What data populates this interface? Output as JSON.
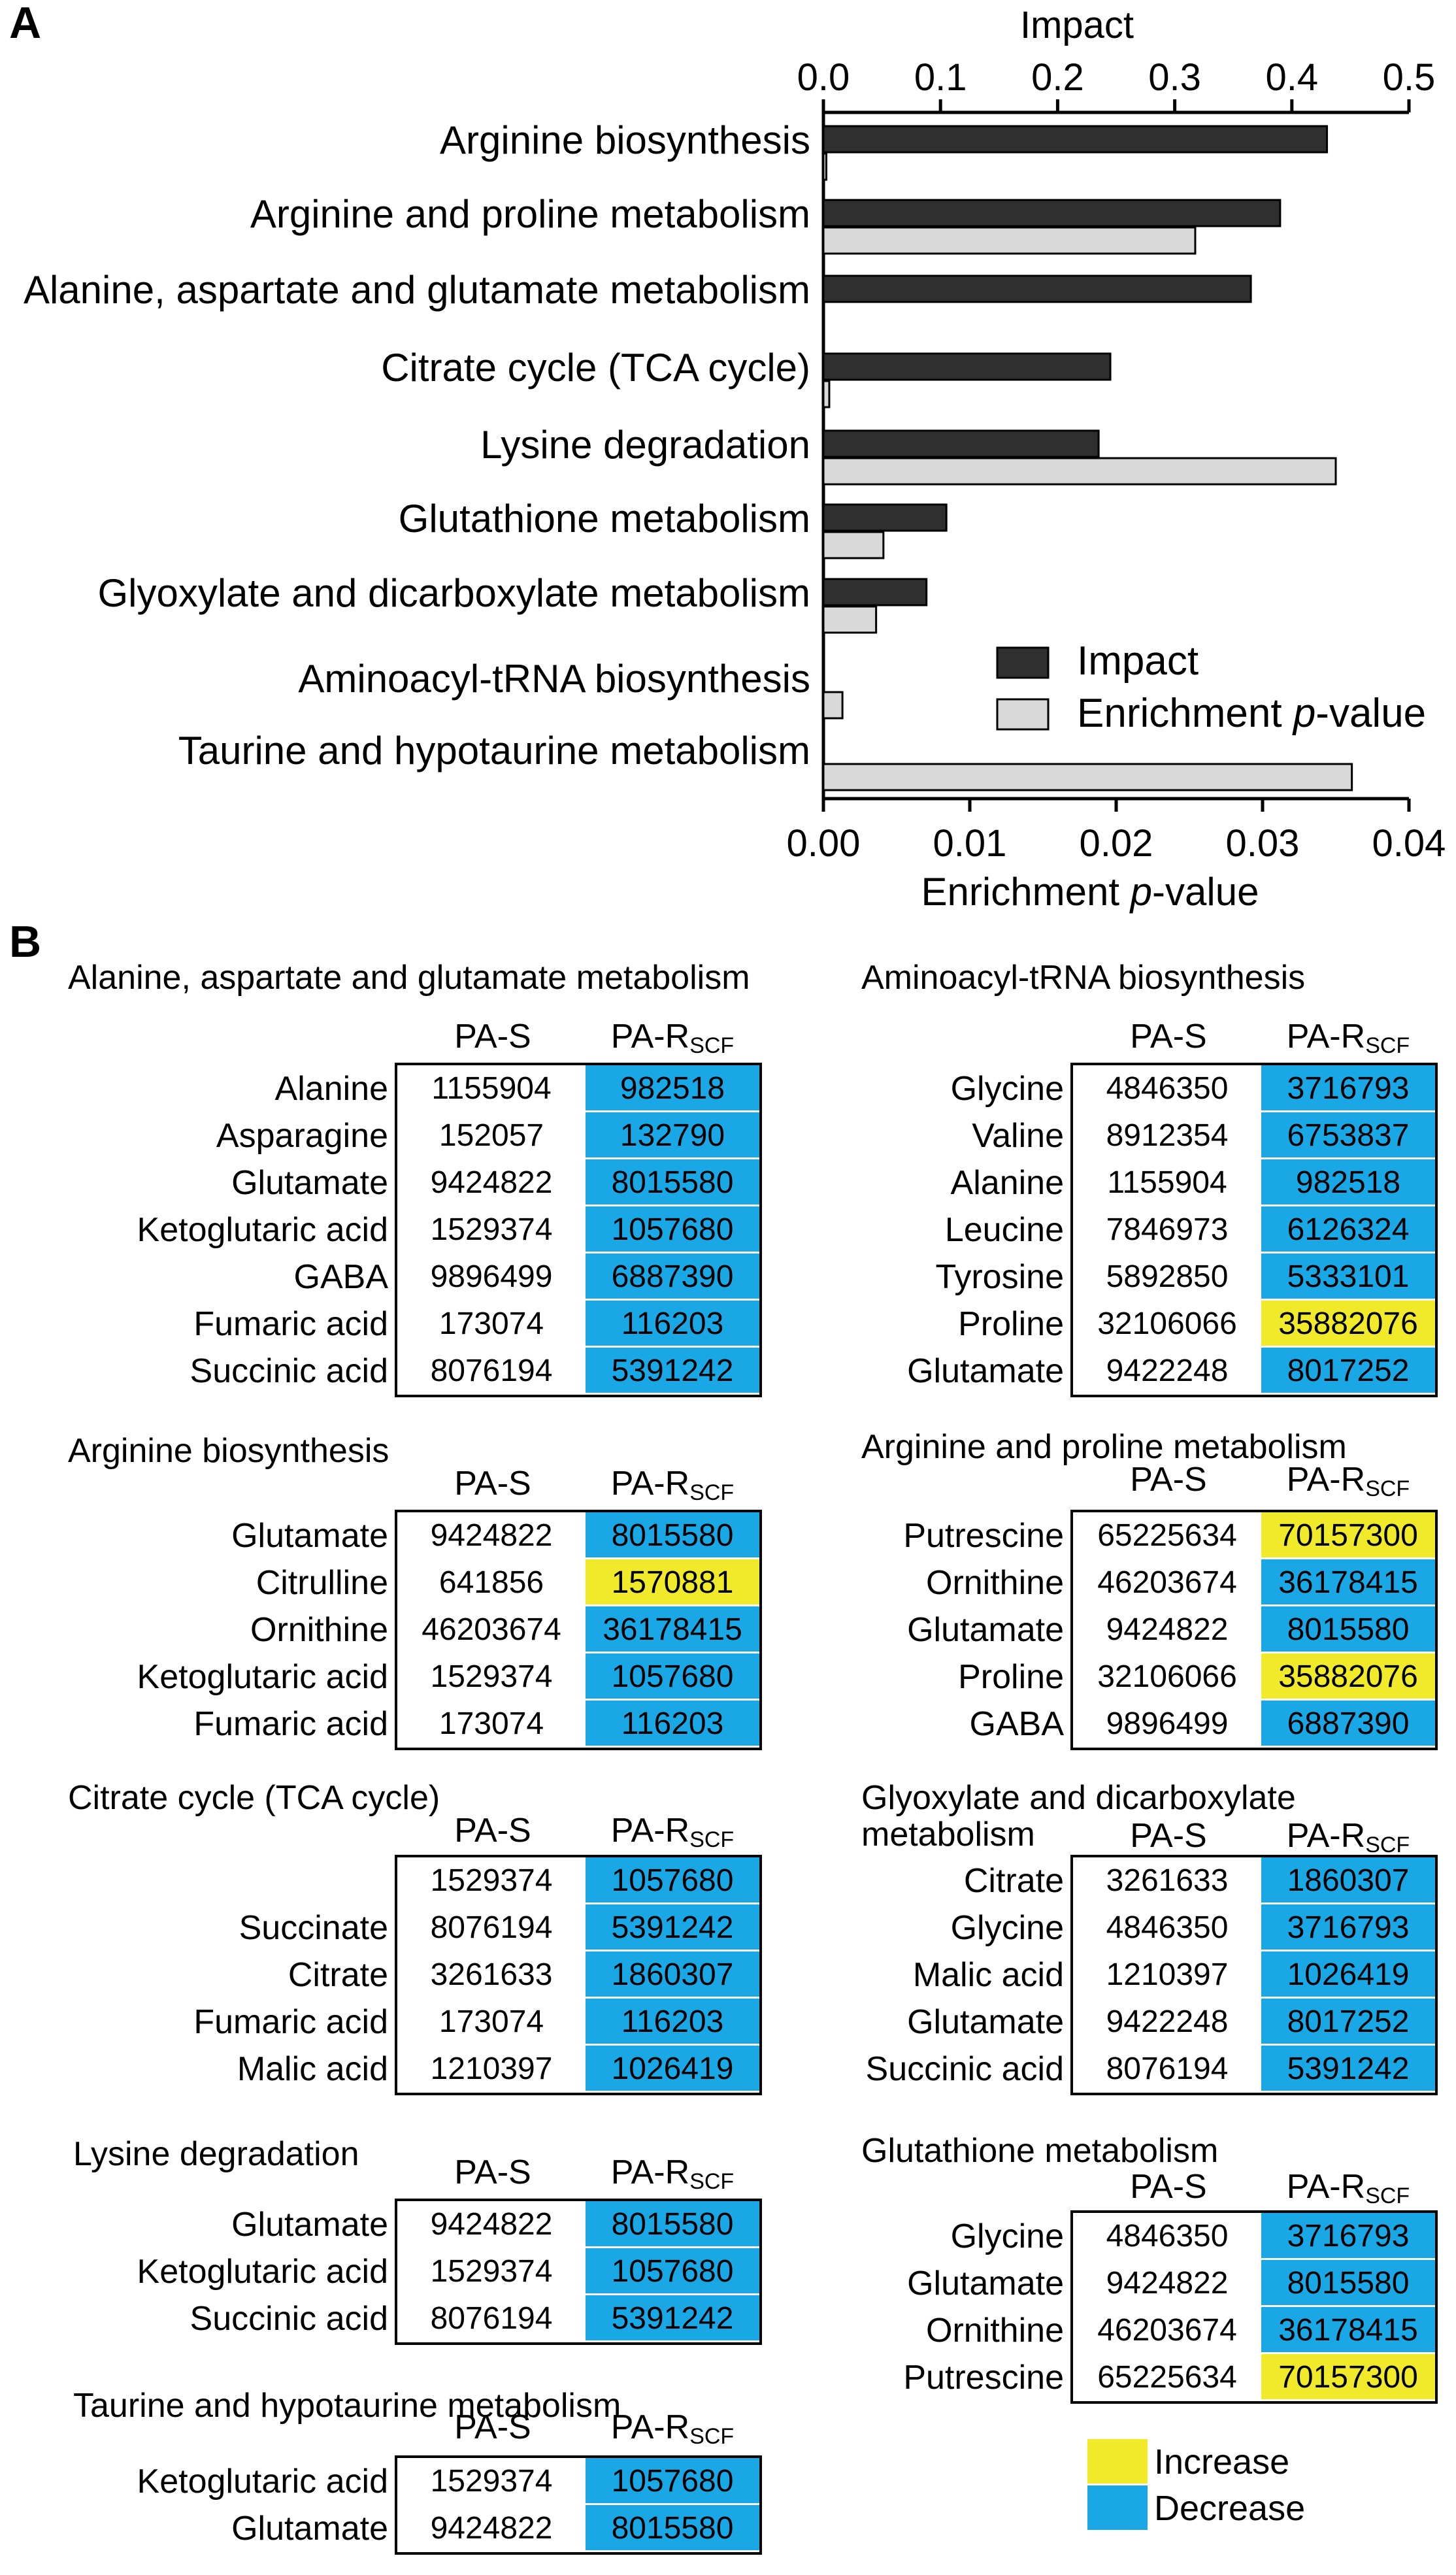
{
  "panel_a_label": "A",
  "panel_b_label": "B",
  "chart_data": {
    "type": "bar",
    "orientation": "horizontal",
    "categories": [
      "Arginine biosynthesis",
      "Arginine and proline metabolism",
      "Alanine, aspartate and glutamate metabolism",
      "Citrate cycle (TCA cycle)",
      "Lysine degradation",
      "Glutathione metabolism",
      "Glyoxylate and dicarboxylate metabolism",
      "Aminoacyl-tRNA biosynthesis",
      "Taurine and hypotaurine metabolism"
    ],
    "series": [
      {
        "name": "Impact",
        "axis": "top",
        "color": "#2f2f2f",
        "values": [
          0.43,
          0.39,
          0.365,
          0.245,
          0.235,
          0.105,
          0.088,
          0.0,
          0.0
        ]
      },
      {
        "name": "Enrichment p-value",
        "axis": "bottom",
        "color": "#d9d9d9",
        "values": [
          0.0002,
          0.0254,
          0.0,
          0.0004,
          0.035,
          0.0041,
          0.0036,
          0.0013,
          0.0361
        ]
      }
    ],
    "top_axis": {
      "label": "Impact",
      "range": [
        0,
        0.5
      ],
      "ticks": [
        "0.0",
        "0.1",
        "0.2",
        "0.3",
        "0.4",
        "0.5"
      ]
    },
    "bottom_axis": {
      "label_main": "Enrichment ",
      "label_italic": "p",
      "label_suffix": "-value",
      "range": [
        0,
        0.04
      ],
      "ticks": [
        "0.00",
        "0.01",
        "0.02",
        "0.03",
        "0.04"
      ]
    },
    "legend": {
      "placement": "lower-right",
      "items": [
        {
          "label": "Impact"
        },
        {
          "label_main": "Enrichment ",
          "label_italic": "p",
          "label_suffix": "-value"
        }
      ]
    },
    "grid": false
  },
  "tables": {
    "col_s": "PA-S",
    "col_r_main": "PA-R",
    "col_r_sub": "SCF",
    "legend": {
      "increase": "Increase",
      "decrease": "Decrease",
      "increase_color": "#f1ea2b",
      "decrease_color": "#1aa7e6"
    },
    "blocks": [
      {
        "title": "Alanine, aspartate and glutamate metabolism",
        "rows": [
          {
            "name": "Alanine",
            "s": "1155904",
            "r": "982518",
            "change": "decrease"
          },
          {
            "name": "Asparagine",
            "s": "152057",
            "r": "132790",
            "change": "decrease"
          },
          {
            "name": "Glutamate",
            "s": "9424822",
            "r": "8015580",
            "change": "decrease"
          },
          {
            "name": "Ketoglutaric acid",
            "s": "1529374",
            "r": "1057680",
            "change": "decrease"
          },
          {
            "name": "GABA",
            "s": "9896499",
            "r": "6887390",
            "change": "decrease"
          },
          {
            "name": "Fumaric acid",
            "s": "173074",
            "r": "116203",
            "change": "decrease"
          },
          {
            "name": "Succinic acid",
            "s": "8076194",
            "r": "5391242",
            "change": "decrease"
          }
        ]
      },
      {
        "title": "Aminoacyl-tRNA biosynthesis",
        "rows": [
          {
            "name": "Glycine",
            "s": "4846350",
            "r": "3716793",
            "change": "decrease"
          },
          {
            "name": "Valine",
            "s": "8912354",
            "r": "6753837",
            "change": "decrease"
          },
          {
            "name": "Alanine",
            "s": "1155904",
            "r": "982518",
            "change": "decrease"
          },
          {
            "name": "Leucine",
            "s": "7846973",
            "r": "6126324",
            "change": "decrease"
          },
          {
            "name": "Tyrosine",
            "s": "5892850",
            "r": "5333101",
            "change": "decrease"
          },
          {
            "name": "Proline",
            "s": "32106066",
            "r": "35882076",
            "change": "increase"
          },
          {
            "name": "Glutamate",
            "s": "9422248",
            "r": "8017252",
            "change": "decrease"
          }
        ]
      },
      {
        "title": "Arginine biosynthesis",
        "rows": [
          {
            "name": "Glutamate",
            "s": "9424822",
            "r": "8015580",
            "change": "decrease"
          },
          {
            "name": "Citrulline",
            "s": "641856",
            "r": "1570881",
            "change": "increase"
          },
          {
            "name": "Ornithine",
            "s": "46203674",
            "r": "36178415",
            "change": "decrease"
          },
          {
            "name": "Ketoglutaric acid",
            "s": "1529374",
            "r": "1057680",
            "change": "decrease"
          },
          {
            "name": "Fumaric acid",
            "s": "173074",
            "r": "116203",
            "change": "decrease"
          }
        ]
      },
      {
        "title": "Arginine and proline metabolism",
        "rows": [
          {
            "name": "Putrescine",
            "s": "65225634",
            "r": "70157300",
            "change": "increase"
          },
          {
            "name": "Ornithine",
            "s": "46203674",
            "r": "36178415",
            "change": "decrease"
          },
          {
            "name": "Glutamate",
            "s": "9424822",
            "r": "8015580",
            "change": "decrease"
          },
          {
            "name": "Proline",
            "s": "32106066",
            "r": "35882076",
            "change": "increase"
          },
          {
            "name": "GABA",
            "s": "9896499",
            "r": "6887390",
            "change": "decrease"
          }
        ]
      },
      {
        "title": "Citrate cycle (TCA cycle)",
        "rows": [
          {
            "name": "",
            "s": "1529374",
            "r": "1057680",
            "change": "decrease"
          },
          {
            "name": "Succinate",
            "s": "8076194",
            "r": "5391242",
            "change": "decrease"
          },
          {
            "name": "Citrate",
            "s": "3261633",
            "r": "1860307",
            "change": "decrease"
          },
          {
            "name": "Fumaric acid",
            "s": "173074",
            "r": "116203",
            "change": "decrease"
          },
          {
            "name": "Malic acid",
            "s": "1210397",
            "r": "1026419",
            "change": "decrease"
          }
        ]
      },
      {
        "title": "Glyoxylate and dicarboxylate",
        "title_line2": "metabolism",
        "rows": [
          {
            "name": "Citrate",
            "s": "3261633",
            "r": "1860307",
            "change": "decrease"
          },
          {
            "name": "Glycine",
            "s": "4846350",
            "r": "3716793",
            "change": "decrease"
          },
          {
            "name": "Malic acid",
            "s": "1210397",
            "r": "1026419",
            "change": "decrease"
          },
          {
            "name": "Glutamate",
            "s": "9422248",
            "r": "8017252",
            "change": "decrease"
          },
          {
            "name": "Succinic acid",
            "s": "8076194",
            "r": "5391242",
            "change": "decrease"
          }
        ]
      },
      {
        "title": "Lysine degradation",
        "rows": [
          {
            "name": "Glutamate",
            "s": "9424822",
            "r": "8015580",
            "change": "decrease"
          },
          {
            "name": "Ketoglutaric acid",
            "s": "1529374",
            "r": "1057680",
            "change": "decrease"
          },
          {
            "name": "Succinic acid",
            "s": "8076194",
            "r": "5391242",
            "change": "decrease"
          }
        ]
      },
      {
        "title": "Glutathione metabolism",
        "rows": [
          {
            "name": "Glycine",
            "s": "4846350",
            "r": "3716793",
            "change": "decrease"
          },
          {
            "name": "Glutamate",
            "s": "9424822",
            "r": "8015580",
            "change": "decrease"
          },
          {
            "name": "Ornithine",
            "s": "46203674",
            "r": "36178415",
            "change": "decrease"
          },
          {
            "name": "Putrescine",
            "s": "65225634",
            "r": "70157300",
            "change": "increase"
          }
        ]
      },
      {
        "title": "Taurine and hypotaurine metabolism",
        "rows": [
          {
            "name": "Ketoglutaric acid",
            "s": "1529374",
            "r": "1057680",
            "change": "decrease"
          },
          {
            "name": "Glutamate",
            "s": "9424822",
            "r": "8015580",
            "change": "decrease"
          }
        ]
      }
    ]
  }
}
